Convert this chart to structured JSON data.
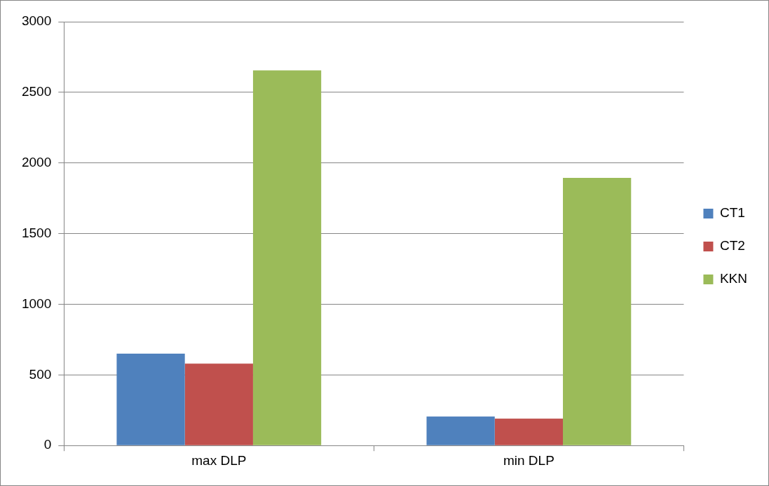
{
  "chart_data": {
    "type": "bar",
    "categories": [
      "max DLP",
      "min DLP"
    ],
    "series": [
      {
        "name": "CT1",
        "color": "#4f81bd",
        "values": [
          650,
          205
        ]
      },
      {
        "name": "CT2",
        "color": "#c0504d",
        "values": [
          580,
          190
        ]
      },
      {
        "name": "KKN",
        "color": "#9bbb59",
        "values": [
          2655,
          1895
        ]
      }
    ],
    "ylim": [
      0,
      3000
    ],
    "yticks": [
      0,
      500,
      1000,
      1500,
      2000,
      2500,
      3000
    ],
    "grid": "y",
    "legend": "right"
  }
}
